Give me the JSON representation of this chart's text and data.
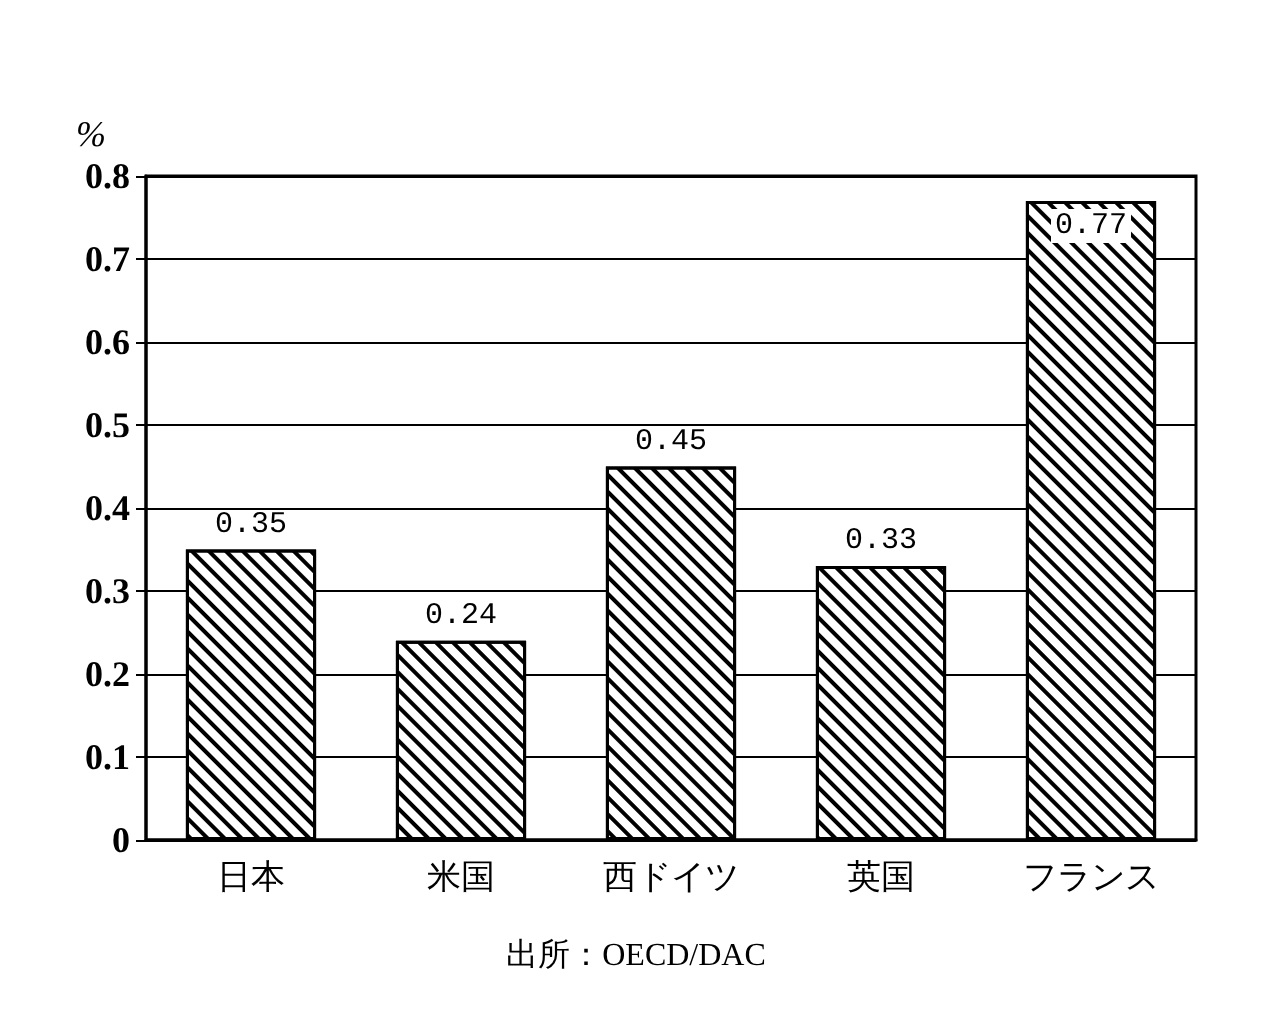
{
  "chart_data": {
    "type": "bar",
    "ylabel": "%",
    "categories": [
      "日本",
      "米国",
      "西ドイツ",
      "英国",
      "フランス"
    ],
    "values": [
      0.35,
      0.24,
      0.45,
      0.33,
      0.77
    ],
    "color": "#000000",
    "ylim": [
      0,
      0.8
    ],
    "yticks": [
      0,
      0.1,
      0.2,
      0.3,
      0.4,
      0.5,
      0.6,
      0.7,
      0.8
    ],
    "grid": "y",
    "data_labels": true,
    "annotations": [
      "出所：OECD/DAC"
    ]
  }
}
